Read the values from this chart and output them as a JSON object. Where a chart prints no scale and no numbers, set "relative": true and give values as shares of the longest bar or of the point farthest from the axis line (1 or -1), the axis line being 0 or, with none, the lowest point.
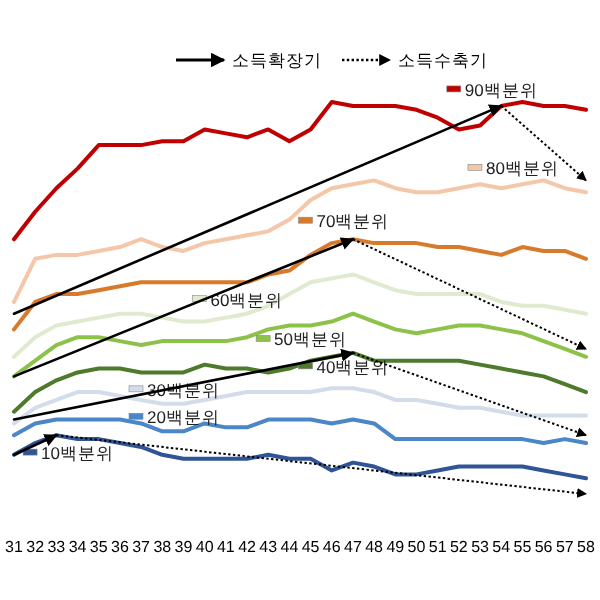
{
  "chart_data": {
    "type": "line",
    "relative": true,
    "legend": "top",
    "grid": false,
    "categories": [
      "31",
      "32",
      "33",
      "34",
      "35",
      "36",
      "37",
      "38",
      "39",
      "40",
      "41",
      "42",
      "43",
      "44",
      "45",
      "46",
      "47",
      "48",
      "49",
      "50",
      "51",
      "52",
      "53",
      "54",
      "55",
      "56",
      "57",
      "58"
    ],
    "series": [
      {
        "name": "90백분위",
        "color": "#c00000",
        "values": [
          0.65,
          0.72,
          0.78,
          0.83,
          0.89,
          0.89,
          0.89,
          0.9,
          0.9,
          0.93,
          0.92,
          0.91,
          0.93,
          0.9,
          0.93,
          1.0,
          0.99,
          0.99,
          0.99,
          0.98,
          0.96,
          0.93,
          0.94,
          0.99,
          1.0,
          0.99,
          0.99,
          0.98
        ]
      },
      {
        "name": "80백분위",
        "color": "#f4c7a8",
        "values": [
          0.49,
          0.6,
          0.61,
          0.61,
          0.62,
          0.63,
          0.65,
          0.63,
          0.62,
          0.64,
          0.65,
          0.66,
          0.67,
          0.7,
          0.75,
          0.78,
          0.79,
          0.8,
          0.78,
          0.77,
          0.77,
          0.78,
          0.79,
          0.78,
          0.79,
          0.8,
          0.78,
          0.77
        ]
      },
      {
        "name": "70백분위",
        "color": "#d87a2c",
        "values": [
          0.42,
          0.49,
          0.51,
          0.51,
          0.52,
          0.53,
          0.54,
          0.54,
          0.54,
          0.54,
          0.54,
          0.54,
          0.56,
          0.57,
          0.61,
          0.64,
          0.65,
          0.64,
          0.64,
          0.64,
          0.63,
          0.63,
          0.62,
          0.61,
          0.63,
          0.62,
          0.62,
          0.6
        ]
      },
      {
        "name": "60백분위",
        "color": "#dfeacf",
        "values": [
          0.35,
          0.4,
          0.43,
          0.44,
          0.45,
          0.46,
          0.46,
          0.45,
          0.44,
          0.44,
          0.45,
          0.46,
          0.48,
          0.51,
          0.54,
          0.55,
          0.56,
          0.54,
          0.52,
          0.51,
          0.51,
          0.51,
          0.51,
          0.49,
          0.48,
          0.48,
          0.47,
          0.46
        ]
      },
      {
        "name": "50백분위",
        "color": "#8dc24a",
        "values": [
          0.3,
          0.34,
          0.38,
          0.4,
          0.4,
          0.39,
          0.38,
          0.39,
          0.39,
          0.39,
          0.39,
          0.4,
          0.42,
          0.43,
          0.43,
          0.44,
          0.46,
          0.44,
          0.42,
          0.41,
          0.42,
          0.43,
          0.43,
          0.42,
          0.41,
          0.39,
          0.37,
          0.35
        ]
      },
      {
        "name": "40백분위",
        "color": "#4e7a2c",
        "values": [
          0.21,
          0.26,
          0.29,
          0.31,
          0.32,
          0.32,
          0.31,
          0.31,
          0.31,
          0.33,
          0.32,
          0.32,
          0.31,
          0.32,
          0.34,
          0.35,
          0.36,
          0.34,
          0.34,
          0.34,
          0.34,
          0.34,
          0.33,
          0.32,
          0.31,
          0.3,
          0.28,
          0.26
        ]
      },
      {
        "name": "30백분위",
        "color": "#d3dcea",
        "values": [
          0.18,
          0.22,
          0.24,
          0.26,
          0.26,
          0.25,
          0.24,
          0.23,
          0.23,
          0.24,
          0.25,
          0.26,
          0.26,
          0.26,
          0.26,
          0.27,
          0.27,
          0.26,
          0.24,
          0.24,
          0.23,
          0.22,
          0.22,
          0.21,
          0.2,
          0.2,
          0.2,
          0.2
        ]
      },
      {
        "name": "20백분위",
        "color": "#4a86c8",
        "values": [
          0.15,
          0.18,
          0.19,
          0.19,
          0.19,
          0.19,
          0.18,
          0.16,
          0.16,
          0.18,
          0.17,
          0.17,
          0.19,
          0.19,
          0.19,
          0.18,
          0.19,
          0.18,
          0.14,
          0.14,
          0.14,
          0.14,
          0.14,
          0.14,
          0.14,
          0.13,
          0.14,
          0.13
        ]
      },
      {
        "name": "10백분위",
        "color": "#2f5597",
        "values": [
          0.1,
          0.13,
          0.15,
          0.14,
          0.14,
          0.13,
          0.12,
          0.1,
          0.09,
          0.09,
          0.09,
          0.09,
          0.1,
          0.09,
          0.09,
          0.06,
          0.08,
          0.07,
          0.05,
          0.05,
          0.06,
          0.07,
          0.07,
          0.07,
          0.07,
          0.06,
          0.05,
          0.04
        ]
      },
      {
        "name": "소득확장기",
        "color": "#000000",
        "line_style": "solid",
        "x": [
          "31",
          "54"
        ],
        "values": [
          0.46,
          0.99
        ]
      },
      {
        "color": "#000000",
        "line_style": "solid",
        "x": [
          "31",
          "47"
        ],
        "values": [
          0.3,
          0.65
        ]
      },
      {
        "color": "#000000",
        "line_style": "solid",
        "x": [
          "31",
          "47"
        ],
        "values": [
          0.19,
          0.36
        ]
      },
      {
        "color": "#000000",
        "line_style": "solid",
        "x": [
          "31",
          "33"
        ],
        "values": [
          0.1,
          0.15
        ]
      },
      {
        "name": "소득수축기",
        "color": "#000000",
        "line_style": "dotted",
        "x": [
          "54",
          "58"
        ],
        "values": [
          0.99,
          0.8
        ]
      },
      {
        "color": "#000000",
        "line_style": "dotted",
        "x": [
          "47",
          "58"
        ],
        "values": [
          0.65,
          0.37
        ]
      },
      {
        "color": "#000000",
        "line_style": "dotted",
        "x": [
          "47",
          "58"
        ],
        "values": [
          0.36,
          0.15
        ]
      },
      {
        "color": "#000000",
        "line_style": "dotted",
        "x": [
          "33",
          "58"
        ],
        "values": [
          0.15,
          0.0
        ]
      }
    ]
  }
}
